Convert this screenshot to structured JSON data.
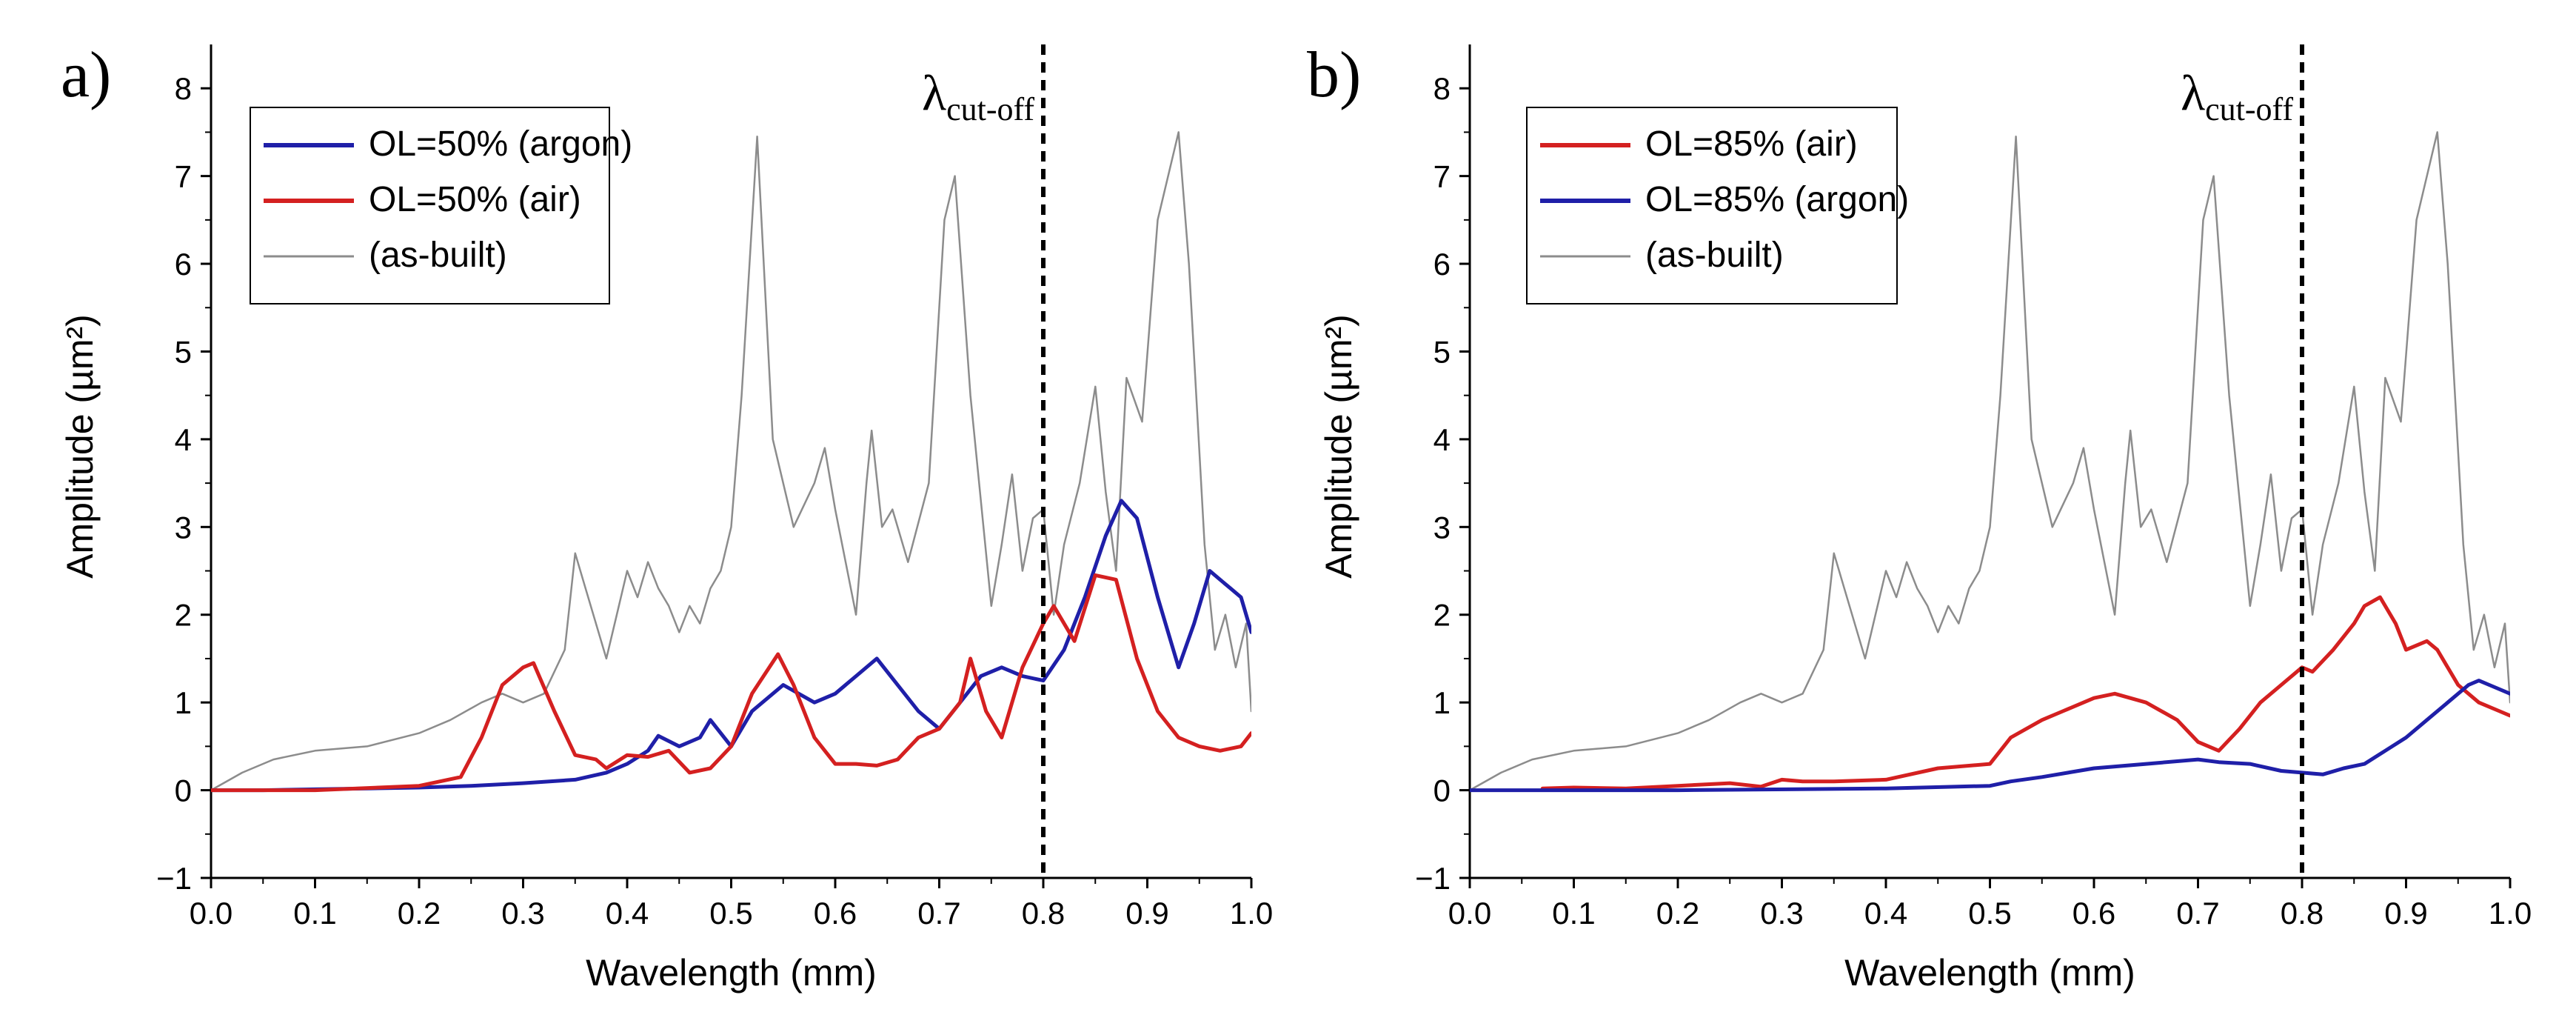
{
  "chart_data": [
    {
      "type": "line",
      "panel_label": "a)",
      "xlabel": "Wavelength (mm)",
      "ylabel": "Amplitude (µm²)",
      "xlim": [
        0.0,
        1.0
      ],
      "ylim": [
        -1,
        8.5
      ],
      "xticks": [
        "0.0",
        "0.1",
        "0.2",
        "0.3",
        "0.4",
        "0.5",
        "0.6",
        "0.7",
        "0.8",
        "0.9",
        "1.0"
      ],
      "yticks": [
        "-1",
        "0",
        "1",
        "2",
        "3",
        "4",
        "5",
        "6",
        "7",
        "8"
      ],
      "cutoff": {
        "x": 0.8,
        "label": "λ",
        "label_sub": "cut-off"
      },
      "legend_position": "top-left",
      "series": [
        {
          "name": "OL=50% (argon)",
          "color": "#1f1fa8",
          "x": [
            0.0,
            0.05,
            0.1,
            0.15,
            0.2,
            0.25,
            0.3,
            0.35,
            0.38,
            0.4,
            0.42,
            0.43,
            0.45,
            0.47,
            0.48,
            0.5,
            0.52,
            0.55,
            0.58,
            0.6,
            0.62,
            0.64,
            0.66,
            0.68,
            0.7,
            0.72,
            0.74,
            0.76,
            0.78,
            0.8,
            0.82,
            0.84,
            0.86,
            0.875,
            0.89,
            0.91,
            0.93,
            0.945,
            0.96,
            0.97,
            0.98,
            0.99,
            1.0
          ],
          "y": [
            0,
            0,
            0.01,
            0.02,
            0.03,
            0.05,
            0.08,
            0.12,
            0.2,
            0.3,
            0.45,
            0.62,
            0.5,
            0.6,
            0.8,
            0.5,
            0.9,
            1.2,
            1.0,
            1.1,
            1.3,
            1.5,
            1.2,
            0.9,
            0.7,
            1.0,
            1.3,
            1.4,
            1.3,
            1.25,
            1.6,
            2.2,
            2.9,
            3.3,
            3.1,
            2.2,
            1.4,
            1.9,
            2.5,
            2.4,
            2.3,
            2.2,
            1.8
          ]
        },
        {
          "name": "OL=50% (air)",
          "color": "#d42020",
          "x": [
            0.0,
            0.1,
            0.2,
            0.24,
            0.26,
            0.28,
            0.3,
            0.31,
            0.33,
            0.35,
            0.37,
            0.38,
            0.4,
            0.42,
            0.44,
            0.46,
            0.48,
            0.5,
            0.52,
            0.545,
            0.56,
            0.58,
            0.6,
            0.62,
            0.64,
            0.66,
            0.68,
            0.7,
            0.72,
            0.73,
            0.745,
            0.76,
            0.78,
            0.8,
            0.81,
            0.83,
            0.85,
            0.87,
            0.89,
            0.91,
            0.93,
            0.95,
            0.97,
            0.99,
            1.0
          ],
          "y": [
            0,
            0,
            0.05,
            0.15,
            0.6,
            1.2,
            1.4,
            1.45,
            0.9,
            0.4,
            0.35,
            0.25,
            0.4,
            0.38,
            0.45,
            0.2,
            0.25,
            0.5,
            1.1,
            1.55,
            1.2,
            0.6,
            0.3,
            0.3,
            0.28,
            0.35,
            0.6,
            0.7,
            1.0,
            1.5,
            0.9,
            0.6,
            1.4,
            1.9,
            2.1,
            1.7,
            2.45,
            2.4,
            1.5,
            0.9,
            0.6,
            0.5,
            0.45,
            0.5,
            0.65
          ]
        },
        {
          "name": "(as-built)",
          "color": "#8c8c8c",
          "x": [
            0.0,
            0.03,
            0.06,
            0.1,
            0.15,
            0.2,
            0.23,
            0.26,
            0.28,
            0.3,
            0.32,
            0.34,
            0.35,
            0.36,
            0.38,
            0.39,
            0.4,
            0.41,
            0.42,
            0.43,
            0.44,
            0.45,
            0.46,
            0.47,
            0.48,
            0.49,
            0.5,
            0.51,
            0.525,
            0.54,
            0.56,
            0.58,
            0.59,
            0.6,
            0.62,
            0.63,
            0.635,
            0.645,
            0.655,
            0.67,
            0.69,
            0.705,
            0.715,
            0.73,
            0.75,
            0.76,
            0.77,
            0.78,
            0.79,
            0.8,
            0.81,
            0.82,
            0.835,
            0.85,
            0.86,
            0.87,
            0.88,
            0.895,
            0.91,
            0.93,
            0.94,
            0.955,
            0.965,
            0.975,
            0.985,
            0.995,
            1.0
          ],
          "y": [
            0,
            0.2,
            0.35,
            0.45,
            0.5,
            0.65,
            0.8,
            1.0,
            1.1,
            1.0,
            1.1,
            1.6,
            2.7,
            2.3,
            1.5,
            2.0,
            2.5,
            2.2,
            2.6,
            2.3,
            2.1,
            1.8,
            2.1,
            1.9,
            2.3,
            2.5,
            3.0,
            4.5,
            7.45,
            4.0,
            3.0,
            3.5,
            3.9,
            3.2,
            2.0,
            3.5,
            4.1,
            3.0,
            3.2,
            2.6,
            3.5,
            6.5,
            7.0,
            4.5,
            2.1,
            2.8,
            3.6,
            2.5,
            3.1,
            3.2,
            2.0,
            2.8,
            3.5,
            4.6,
            3.4,
            2.5,
            4.7,
            4.2,
            6.5,
            7.5,
            6.0,
            2.8,
            1.6,
            2.0,
            1.4,
            1.9,
            0.9
          ]
        }
      ]
    },
    {
      "type": "line",
      "panel_label": "b)",
      "xlabel": "Wavelength (mm)",
      "ylabel": "Amplitude (µm²)",
      "xlim": [
        0.0,
        1.0
      ],
      "ylim": [
        -1,
        8.5
      ],
      "xticks": [
        "0.0",
        "0.1",
        "0.2",
        "0.3",
        "0.4",
        "0.5",
        "0.6",
        "0.7",
        "0.8",
        "0.9",
        "1.0"
      ],
      "yticks": [
        "-1",
        "0",
        "1",
        "2",
        "3",
        "4",
        "5",
        "6",
        "7",
        "8"
      ],
      "cutoff": {
        "x": 0.8,
        "label": "λ",
        "label_sub": "cut-off"
      },
      "legend_position": "top-left",
      "series": [
        {
          "name": "OL=85% (air)",
          "color": "#d42020",
          "x": [
            0.07,
            0.1,
            0.15,
            0.2,
            0.25,
            0.28,
            0.3,
            0.32,
            0.35,
            0.4,
            0.45,
            0.5,
            0.52,
            0.55,
            0.57,
            0.6,
            0.62,
            0.65,
            0.68,
            0.7,
            0.72,
            0.74,
            0.76,
            0.78,
            0.8,
            0.81,
            0.83,
            0.85,
            0.86,
            0.875,
            0.89,
            0.9,
            0.92,
            0.93,
            0.95,
            0.97,
            0.99,
            1.0
          ],
          "y": [
            0.02,
            0.03,
            0.02,
            0.05,
            0.08,
            0.04,
            0.12,
            0.1,
            0.1,
            0.12,
            0.25,
            0.3,
            0.6,
            0.8,
            0.9,
            1.05,
            1.1,
            1.0,
            0.8,
            0.55,
            0.45,
            0.7,
            1.0,
            1.2,
            1.4,
            1.35,
            1.6,
            1.9,
            2.1,
            2.2,
            1.9,
            1.6,
            1.7,
            1.6,
            1.2,
            1.0,
            0.9,
            0.85
          ]
        },
        {
          "name": "OL=85% (argon)",
          "color": "#1f1fa8",
          "x": [
            0.0,
            0.2,
            0.4,
            0.5,
            0.52,
            0.55,
            0.6,
            0.65,
            0.7,
            0.72,
            0.75,
            0.78,
            0.8,
            0.82,
            0.84,
            0.86,
            0.88,
            0.9,
            0.92,
            0.94,
            0.96,
            0.97,
            0.98,
            1.0
          ],
          "y": [
            0,
            0,
            0.02,
            0.05,
            0.1,
            0.15,
            0.25,
            0.3,
            0.35,
            0.32,
            0.3,
            0.22,
            0.2,
            0.18,
            0.25,
            0.3,
            0.45,
            0.6,
            0.8,
            1.0,
            1.2,
            1.25,
            1.2,
            1.1
          ]
        },
        {
          "name": "(as-built)",
          "color": "#8c8c8c",
          "x": [
            0.0,
            0.03,
            0.06,
            0.1,
            0.15,
            0.2,
            0.23,
            0.26,
            0.28,
            0.3,
            0.32,
            0.34,
            0.35,
            0.36,
            0.38,
            0.39,
            0.4,
            0.41,
            0.42,
            0.43,
            0.44,
            0.45,
            0.46,
            0.47,
            0.48,
            0.49,
            0.5,
            0.51,
            0.525,
            0.54,
            0.56,
            0.58,
            0.59,
            0.6,
            0.62,
            0.63,
            0.635,
            0.645,
            0.655,
            0.67,
            0.69,
            0.705,
            0.715,
            0.73,
            0.75,
            0.76,
            0.77,
            0.78,
            0.79,
            0.8,
            0.81,
            0.82,
            0.835,
            0.85,
            0.86,
            0.87,
            0.88,
            0.895,
            0.91,
            0.93,
            0.94,
            0.955,
            0.965,
            0.975,
            0.985,
            0.995,
            1.0
          ],
          "y": [
            0,
            0.2,
            0.35,
            0.45,
            0.5,
            0.65,
            0.8,
            1.0,
            1.1,
            1.0,
            1.1,
            1.6,
            2.7,
            2.3,
            1.5,
            2.0,
            2.5,
            2.2,
            2.6,
            2.3,
            2.1,
            1.8,
            2.1,
            1.9,
            2.3,
            2.5,
            3.0,
            4.5,
            7.45,
            4.0,
            3.0,
            3.5,
            3.9,
            3.2,
            2.0,
            3.5,
            4.1,
            3.0,
            3.2,
            2.6,
            3.5,
            6.5,
            7.0,
            4.5,
            2.1,
            2.8,
            3.6,
            2.5,
            3.1,
            3.2,
            2.0,
            2.8,
            3.5,
            4.6,
            3.4,
            2.5,
            4.7,
            4.2,
            6.5,
            7.5,
            6.0,
            2.8,
            1.6,
            2.0,
            1.4,
            1.9,
            1.0
          ]
        }
      ]
    }
  ]
}
